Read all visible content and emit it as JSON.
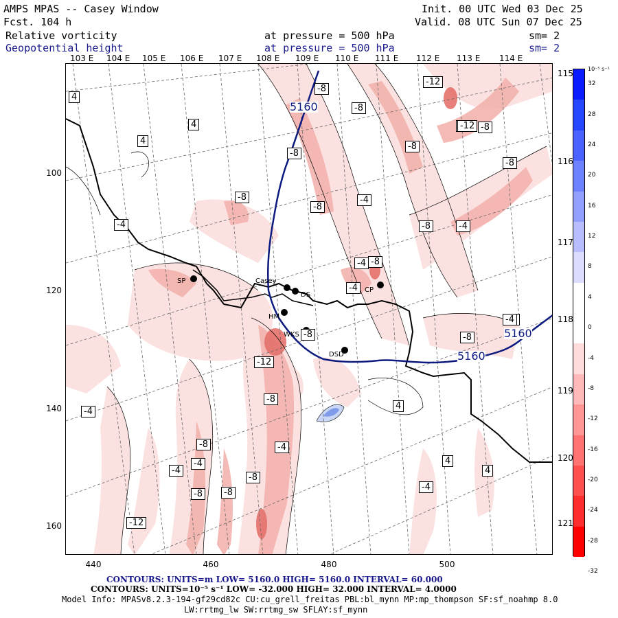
{
  "header": {
    "title": "AMPS MPAS -- Casey Window",
    "forecast": "Fcst.  104 h",
    "init": "Init. 00 UTC Wed 03 Dec 25",
    "valid": "Valid. 08 UTC Sun 07 Dec 25",
    "field1": "Relative vorticity",
    "field1_level": "at pressure =  500 hPa",
    "field1_sm": "sm= 2",
    "field2": "Geopotential height",
    "field2_level": "at pressure =  500 hPa",
    "field2_sm": "sm= 2"
  },
  "axes": {
    "top_lon_labels": [
      "103 E",
      "104 E",
      "105 E",
      "106 E",
      "107 E",
      "108 E",
      "109 E",
      "110 E",
      "111 E",
      "112 E",
      "113 E",
      "114 E"
    ],
    "right_lon_labels": [
      "115 E",
      "116 E",
      "117 E",
      "118 E",
      "119 E",
      "120 E",
      "121 E"
    ],
    "left_grid_labels": [
      "100",
      "120",
      "140",
      "160"
    ],
    "bottom_grid_labels": [
      "440",
      "460",
      "480",
      "500"
    ]
  },
  "stations": [
    {
      "label": "SP"
    },
    {
      "label": "Casey"
    },
    {
      "label": "DS"
    },
    {
      "label": "HM"
    },
    {
      "label": "WKS"
    },
    {
      "label": "CP"
    },
    {
      "label": "DSD"
    }
  ],
  "contour_labels": {
    "height": [
      "5160",
      "5160",
      "5160"
    ],
    "vorticity": [
      "4",
      "4",
      "4",
      "-4",
      "-8",
      "-8",
      "-8",
      "-12",
      "-8",
      "-8",
      "-4",
      "-8",
      "-8",
      "-4",
      "-8",
      "-4",
      "-8",
      "-4",
      "-12",
      "-8",
      "-4",
      "-8",
      "-12",
      "-8",
      "4",
      "-8",
      "-4",
      "-4",
      "-8",
      "-8",
      "-8",
      "-4",
      "-4",
      "-12",
      "4",
      "4",
      "-4",
      "-4",
      "-8",
      "-4",
      "-8",
      "-4",
      "-8"
    ]
  },
  "colorbar": {
    "unit": "10⁻⁵ s⁻¹",
    "ticks": [
      "32",
      "28",
      "24",
      "20",
      "16",
      "12",
      "8",
      "4",
      "0",
      "-4",
      "-8",
      "-12",
      "-16",
      "-20",
      "-24",
      "-28",
      "-32"
    ]
  },
  "footer": {
    "line1": "CONTOURS:  UNITS=m  LOW=  5160.0        HIGH=  5160.0        INTERVAL=   60.000",
    "line2": "CONTOURS:  UNITS=10⁻⁵ s⁻¹  LOW= -32.000       HIGH=  32.000       INTERVAL=   4.0000",
    "line3": "Model Info: MPASv8.2.3-194-gf29cd82c CU:cu_grell_freitas PBL:bl_mynn MP:mp_thompson SF:sf_noahmp 8.0",
    "line4": "LW:rrtmg_lw SW:rrtmg_sw SFLAY:sf_mynn"
  }
}
